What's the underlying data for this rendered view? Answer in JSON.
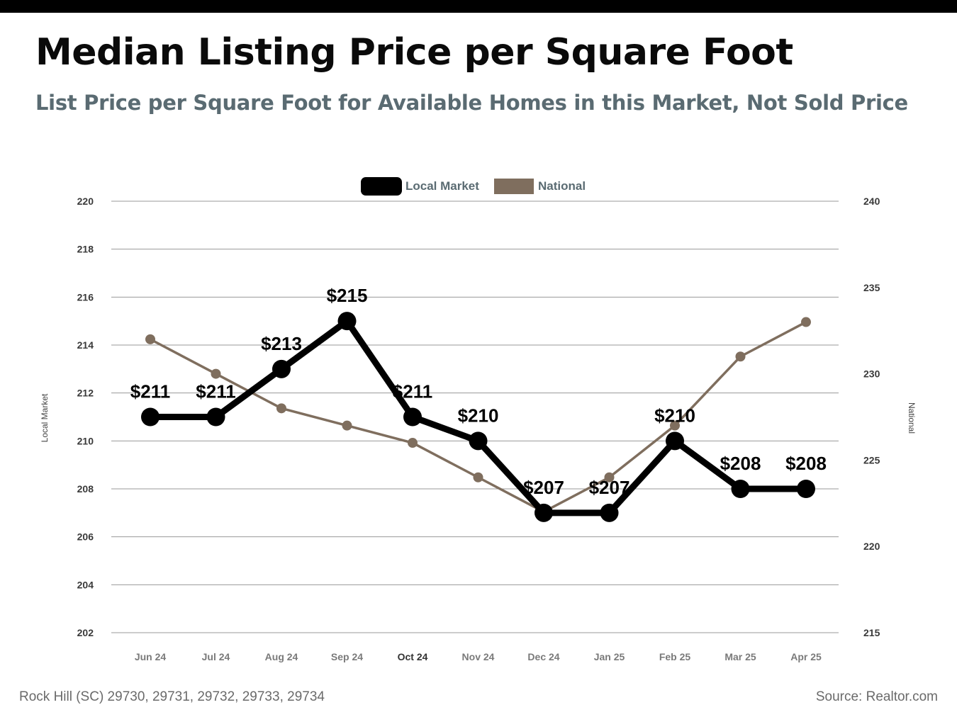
{
  "header": {
    "title": "Median Listing Price per Square Foot",
    "subtitle": "List Price per Square Foot for Available Homes in this Market, Not Sold Price"
  },
  "footer": {
    "location": "Rock Hill (SC) 29730, 29731, 29732, 29733, 29734",
    "source": "Source: Realtor.com"
  },
  "colors": {
    "local": "#000000",
    "national": "#7f6e5e",
    "grid": "#9a9a9a",
    "axis_text": "#3a3a3a",
    "legend_text": "#5a6b72"
  },
  "chart_data": {
    "type": "line",
    "categories": [
      "Jun 24",
      "Jul 24",
      "Aug 24",
      "Sep 24",
      "Oct 24",
      "Nov 24",
      "Dec 24",
      "Jan 25",
      "Feb 25",
      "Mar 25",
      "Apr 25"
    ],
    "series": [
      {
        "name": "Local Market",
        "axis": "left",
        "values": [
          211,
          211,
          213,
          215,
          211,
          210,
          207,
          207,
          210,
          208,
          208
        ],
        "data_labels": [
          "$211",
          "$211",
          "$213",
          "$215",
          "$211",
          "$210",
          "$207",
          "$207",
          "$210",
          "$208",
          "$208"
        ]
      },
      {
        "name": "National",
        "axis": "right",
        "values": [
          232,
          230,
          228,
          227,
          226,
          224,
          222,
          224,
          227,
          231,
          233
        ]
      }
    ],
    "left_axis": {
      "label": "Local Market",
      "ylim": [
        202,
        220
      ],
      "ticks": [
        "202",
        "204",
        "206",
        "208",
        "210",
        "212",
        "214",
        "216",
        "218",
        "220"
      ]
    },
    "right_axis": {
      "label": "National",
      "ylim": [
        215,
        240
      ],
      "ticks": [
        "215",
        "220",
        "225",
        "230",
        "235",
        "240"
      ]
    },
    "legend_position": "top-center",
    "grid": true
  }
}
